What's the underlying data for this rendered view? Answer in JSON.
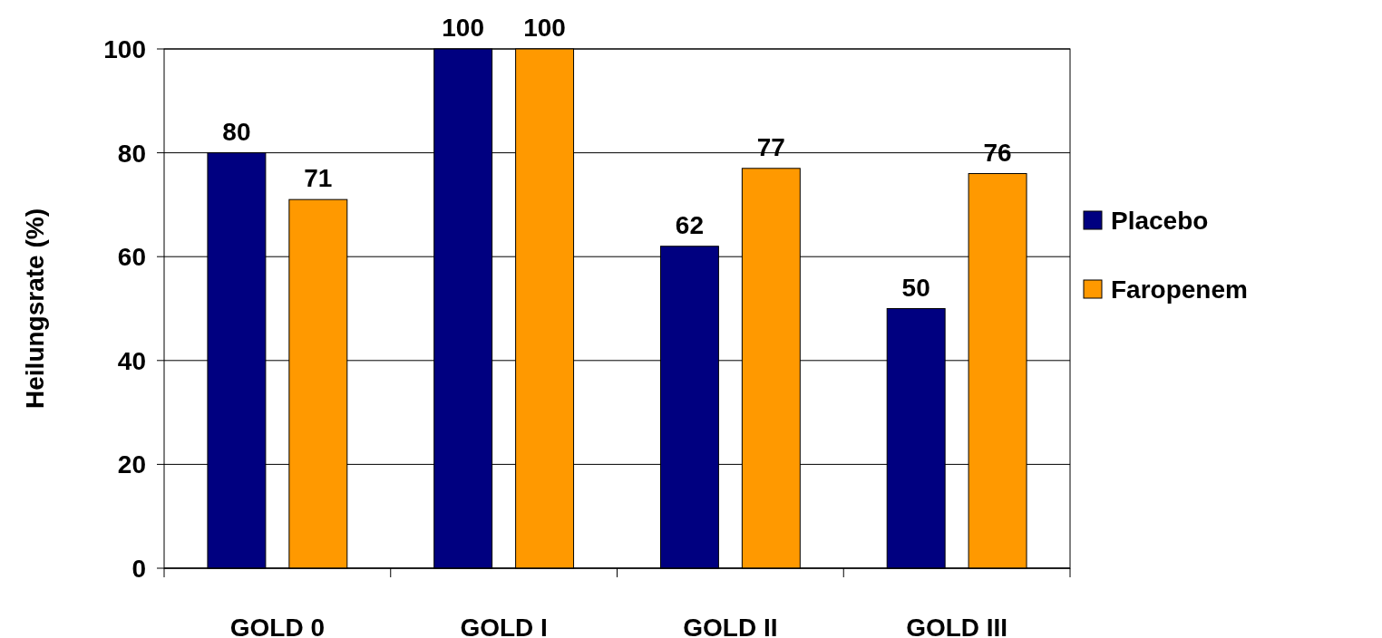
{
  "chart_data": {
    "type": "bar",
    "ylabel": "Heilungsrate (%)",
    "categories": [
      "GOLD 0",
      "GOLD I",
      "GOLD II",
      "GOLD III"
    ],
    "series": [
      {
        "name": "Placebo",
        "color": "#000080",
        "values": [
          80,
          100,
          62,
          50
        ]
      },
      {
        "name": "Faropenem",
        "color": "#ff9900",
        "values": [
          71,
          100,
          77,
          76
        ]
      }
    ],
    "ylim": [
      0,
      100
    ],
    "yticks": [
      0,
      20,
      40,
      60,
      80,
      100
    ],
    "grid": "y",
    "legend": "right",
    "data_labels": true
  }
}
